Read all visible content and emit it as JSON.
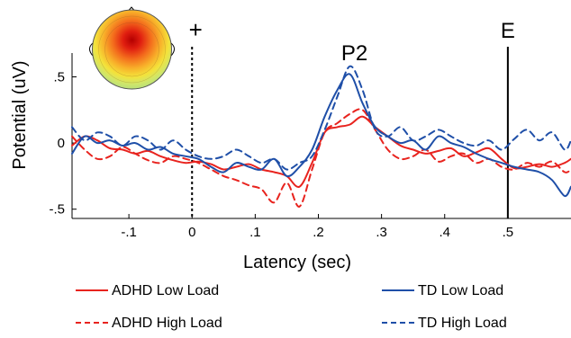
{
  "chart_data": {
    "type": "line",
    "xlabel": "Latency (sec)",
    "ylabel": "Potential (uV)",
    "xlim": [
      -0.19,
      0.6
    ],
    "ylim": [
      -0.57,
      0.68
    ],
    "x_ticks": [
      -0.1,
      0,
      0.1,
      0.2,
      0.3,
      0.4,
      0.5
    ],
    "x_tick_labels": [
      "-.1",
      "0",
      ".1",
      ".2",
      ".3",
      ".4",
      ".5"
    ],
    "y_ticks": [
      -0.5,
      0,
      0.5
    ],
    "y_tick_labels": [
      "-.5",
      "0",
      ".5"
    ],
    "annotations": {
      "stimulus_marker": {
        "label": "+",
        "x": 0,
        "style": "dotted"
      },
      "component_label": {
        "label": "P2",
        "x": 0.25
      },
      "end_marker": {
        "label": "E",
        "x": 0.5,
        "style": "solid"
      }
    },
    "legend_position": "bottom",
    "series": [
      {
        "name": "ADHD Low Load",
        "color": "#e8231e",
        "style": "solid",
        "x": [
          -0.19,
          -0.17,
          -0.15,
          -0.13,
          -0.11,
          -0.09,
          -0.07,
          -0.05,
          -0.03,
          -0.01,
          0.01,
          0.03,
          0.05,
          0.07,
          0.09,
          0.11,
          0.13,
          0.15,
          0.17,
          0.19,
          0.21,
          0.23,
          0.25,
          0.27,
          0.29,
          0.31,
          0.33,
          0.35,
          0.37,
          0.39,
          0.41,
          0.43,
          0.45,
          0.47,
          0.49,
          0.51,
          0.53,
          0.55,
          0.57,
          0.59,
          0.6
        ],
        "y": [
          -0.02,
          0.05,
          0.02,
          -0.04,
          -0.05,
          -0.08,
          -0.06,
          -0.1,
          -0.13,
          -0.15,
          -0.14,
          -0.16,
          -0.2,
          -0.18,
          -0.16,
          -0.2,
          -0.22,
          -0.25,
          -0.33,
          -0.15,
          0.08,
          0.12,
          0.14,
          0.2,
          0.12,
          0.05,
          -0.02,
          -0.05,
          -0.08,
          -0.06,
          -0.04,
          -0.1,
          -0.07,
          -0.04,
          -0.12,
          -0.19,
          -0.18,
          -0.16,
          -0.18,
          -0.15,
          -0.12
        ]
      },
      {
        "name": "ADHD High Load",
        "color": "#e8231e",
        "style": "dashed",
        "x": [
          -0.19,
          -0.17,
          -0.15,
          -0.13,
          -0.11,
          -0.09,
          -0.07,
          -0.05,
          -0.03,
          -0.01,
          0.01,
          0.03,
          0.05,
          0.07,
          0.09,
          0.11,
          0.13,
          0.15,
          0.17,
          0.19,
          0.21,
          0.23,
          0.25,
          0.27,
          0.29,
          0.31,
          0.33,
          0.35,
          0.37,
          0.39,
          0.41,
          0.43,
          0.45,
          0.47,
          0.49,
          0.51,
          0.53,
          0.55,
          0.57,
          0.59,
          0.6
        ],
        "y": [
          0.05,
          -0.05,
          -0.12,
          -0.1,
          -0.03,
          -0.08,
          -0.13,
          -0.15,
          -0.1,
          -0.12,
          -0.15,
          -0.2,
          -0.25,
          -0.28,
          -0.32,
          -0.35,
          -0.45,
          -0.3,
          -0.48,
          -0.2,
          0.08,
          0.15,
          0.22,
          0.25,
          0.1,
          -0.05,
          -0.12,
          -0.1,
          -0.05,
          -0.14,
          -0.1,
          -0.08,
          -0.15,
          -0.12,
          -0.18,
          -0.2,
          -0.15,
          -0.18,
          -0.14,
          -0.22,
          -0.2
        ]
      },
      {
        "name": "TD Low Load",
        "color": "#1f4fa8",
        "style": "solid",
        "x": [
          -0.19,
          -0.17,
          -0.15,
          -0.13,
          -0.11,
          -0.09,
          -0.07,
          -0.05,
          -0.03,
          -0.01,
          0.01,
          0.03,
          0.05,
          0.07,
          0.09,
          0.11,
          0.13,
          0.15,
          0.17,
          0.19,
          0.21,
          0.23,
          0.25,
          0.27,
          0.29,
          0.31,
          0.33,
          0.35,
          0.37,
          0.39,
          0.41,
          0.43,
          0.45,
          0.47,
          0.49,
          0.51,
          0.53,
          0.55,
          0.57,
          0.59,
          0.6
        ],
        "y": [
          -0.08,
          0.05,
          0.0,
          0.02,
          -0.02,
          0.0,
          -0.05,
          -0.03,
          -0.08,
          -0.1,
          -0.12,
          -0.18,
          -0.22,
          -0.15,
          -0.18,
          -0.2,
          -0.12,
          -0.25,
          -0.18,
          -0.05,
          0.2,
          0.4,
          0.52,
          0.3,
          0.12,
          0.05,
          0.0,
          0.02,
          -0.05,
          0.05,
          0.0,
          -0.03,
          -0.08,
          -0.12,
          -0.15,
          -0.18,
          -0.2,
          -0.22,
          -0.28,
          -0.4,
          -0.33
        ]
      },
      {
        "name": "TD High Load",
        "color": "#1f4fa8",
        "style": "dashed",
        "x": [
          -0.19,
          -0.17,
          -0.15,
          -0.13,
          -0.11,
          -0.09,
          -0.07,
          -0.05,
          -0.03,
          -0.01,
          0.01,
          0.03,
          0.05,
          0.07,
          0.09,
          0.11,
          0.13,
          0.15,
          0.17,
          0.19,
          0.21,
          0.23,
          0.25,
          0.27,
          0.29,
          0.31,
          0.33,
          0.35,
          0.37,
          0.39,
          0.41,
          0.43,
          0.45,
          0.47,
          0.49,
          0.51,
          0.53,
          0.55,
          0.57,
          0.59,
          0.6
        ],
        "y": [
          0.12,
          0.02,
          0.08,
          0.05,
          -0.02,
          0.05,
          0.02,
          -0.05,
          0.02,
          -0.05,
          -0.1,
          -0.12,
          -0.1,
          -0.05,
          -0.1,
          -0.15,
          -0.12,
          -0.2,
          -0.15,
          -0.1,
          0.1,
          0.35,
          0.58,
          0.4,
          0.1,
          0.05,
          0.12,
          0.02,
          0.05,
          0.1,
          0.05,
          0.0,
          -0.02,
          0.02,
          -0.05,
          0.03,
          0.1,
          0.02,
          0.08,
          -0.05,
          0.02
        ]
      }
    ]
  }
}
